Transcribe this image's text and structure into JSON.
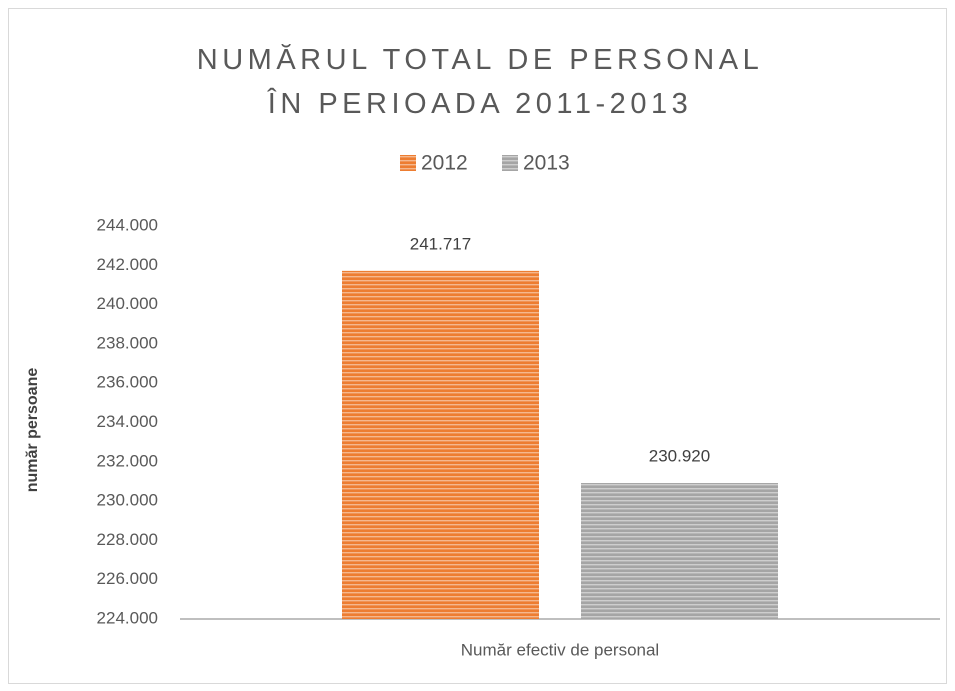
{
  "chart_data": {
    "type": "bar",
    "title": "NUMĂRUL TOTAL DE PERSONAL ÎN PERIOADA 2011-2013",
    "y_label": "număr persoane",
    "categories": [
      "Număr efectiv de personal"
    ],
    "series": [
      {
        "name": "2012",
        "color": "#ed7d31",
        "values": [
          241717
        ],
        "value_labels": [
          "241.717"
        ]
      },
      {
        "name": "2013",
        "color": "#a5a5a5",
        "values": [
          230920
        ],
        "value_labels": [
          "230.920"
        ]
      }
    ],
    "ylim": [
      224000,
      244000
    ],
    "yticks": [
      {
        "value": 224000,
        "label": "224.000"
      },
      {
        "value": 226000,
        "label": "226.000"
      },
      {
        "value": 228000,
        "label": "228.000"
      },
      {
        "value": 230000,
        "label": "230.000"
      },
      {
        "value": 232000,
        "label": "232.000"
      },
      {
        "value": 234000,
        "label": "234.000"
      },
      {
        "value": 236000,
        "label": "236.000"
      },
      {
        "value": 238000,
        "label": "238.000"
      },
      {
        "value": 240000,
        "label": "240.000"
      },
      {
        "value": 242000,
        "label": "242.000"
      },
      {
        "value": 244000,
        "label": "244.000"
      }
    ],
    "grid": false,
    "legend": "top"
  }
}
